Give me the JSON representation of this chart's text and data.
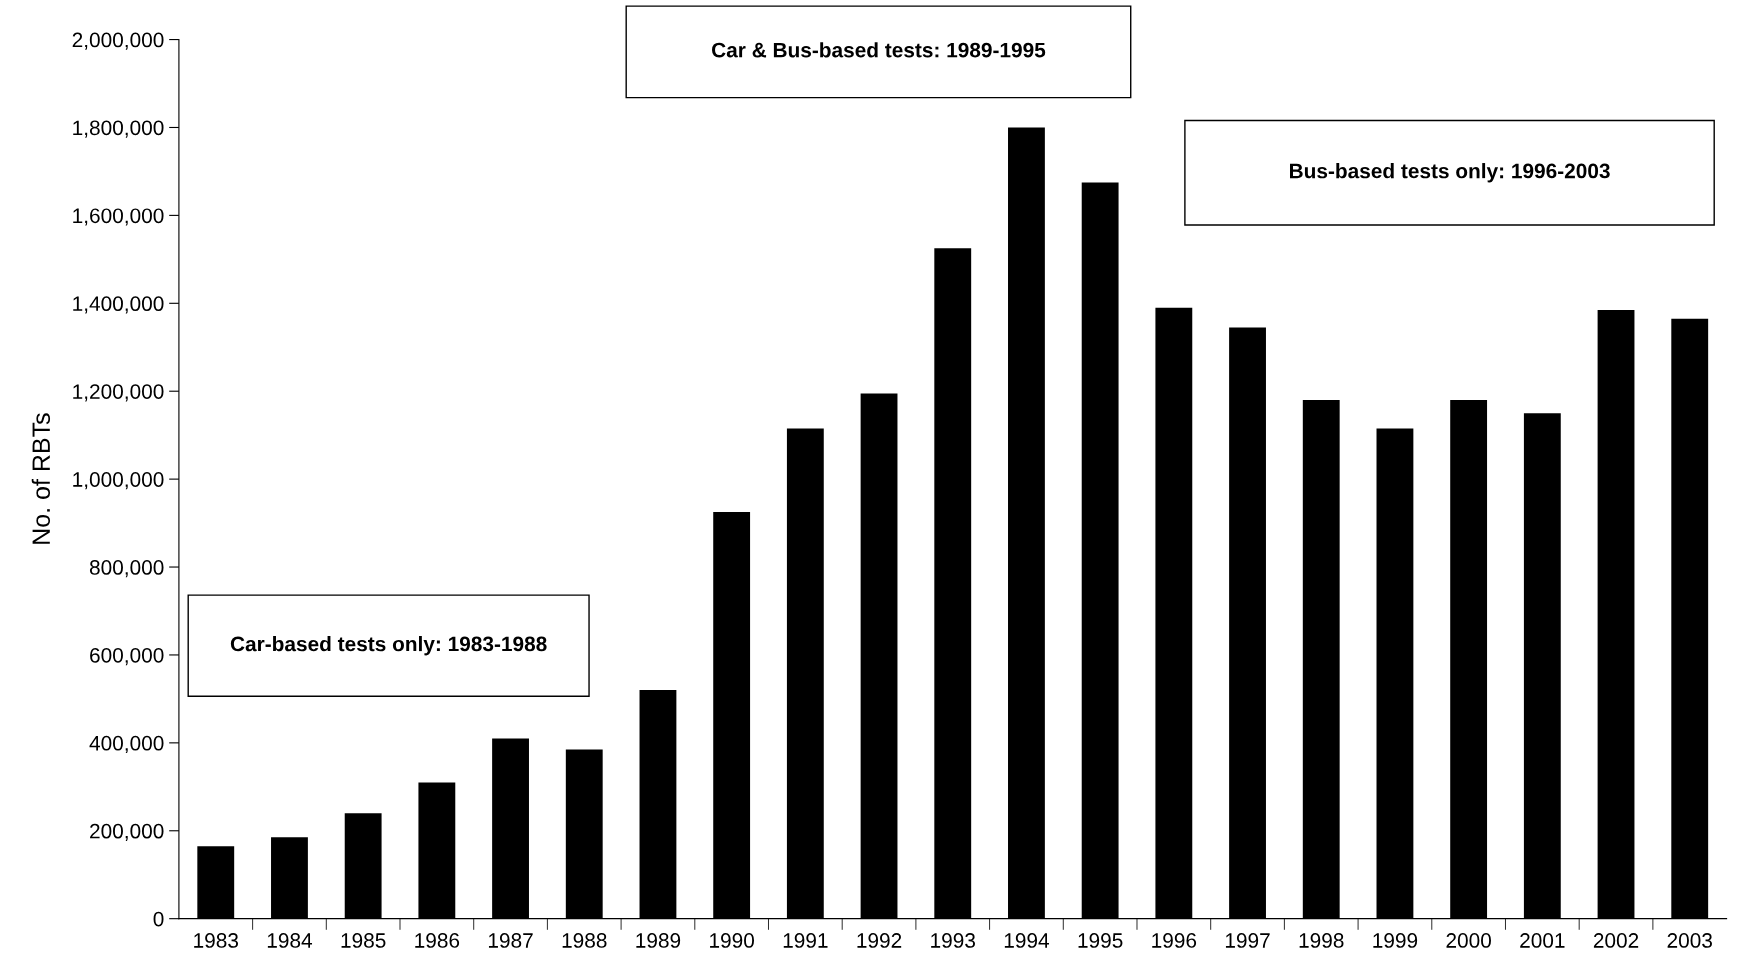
{
  "chart_data": {
    "type": "bar",
    "ylabel": "No. of RBTs",
    "categories": [
      "1983",
      "1984",
      "1985",
      "1986",
      "1987",
      "1988",
      "1989",
      "1990",
      "1991",
      "1992",
      "1993",
      "1994",
      "1995",
      "1996",
      "1997",
      "1998",
      "1999",
      "2000",
      "2001",
      "2002",
      "2003"
    ],
    "values": [
      165000,
      185000,
      240000,
      310000,
      410000,
      385000,
      520000,
      925000,
      1115000,
      1195000,
      1525000,
      1800000,
      1675000,
      1390000,
      1345000,
      1180000,
      1115000,
      1180000,
      1150000,
      1385000,
      1365000
    ],
    "color": "#000000",
    "ylim": [
      0,
      2000000
    ],
    "yticks": [
      {
        "value": 0,
        "label": "0"
      },
      {
        "value": 200000,
        "label": "200,000"
      },
      {
        "value": 400000,
        "label": "400,000"
      },
      {
        "value": 600000,
        "label": "600,000"
      },
      {
        "value": 800000,
        "label": "800,000"
      },
      {
        "value": 1000000,
        "label": "1,000,000"
      },
      {
        "value": 1200000,
        "label": "1,200,000"
      },
      {
        "value": 1400000,
        "label": "1,400,000"
      },
      {
        "value": 1600000,
        "label": "1,600,000"
      },
      {
        "value": 1800000,
        "label": "1,800,000"
      },
      {
        "value": 2000000,
        "label": "2,000,000"
      }
    ],
    "grid": false,
    "annotations": [
      "Car-based tests only: 1983-1988",
      "Car & Bus-based tests: 1989-1995",
      "Bus-based tests only: 1996-2003"
    ]
  }
}
